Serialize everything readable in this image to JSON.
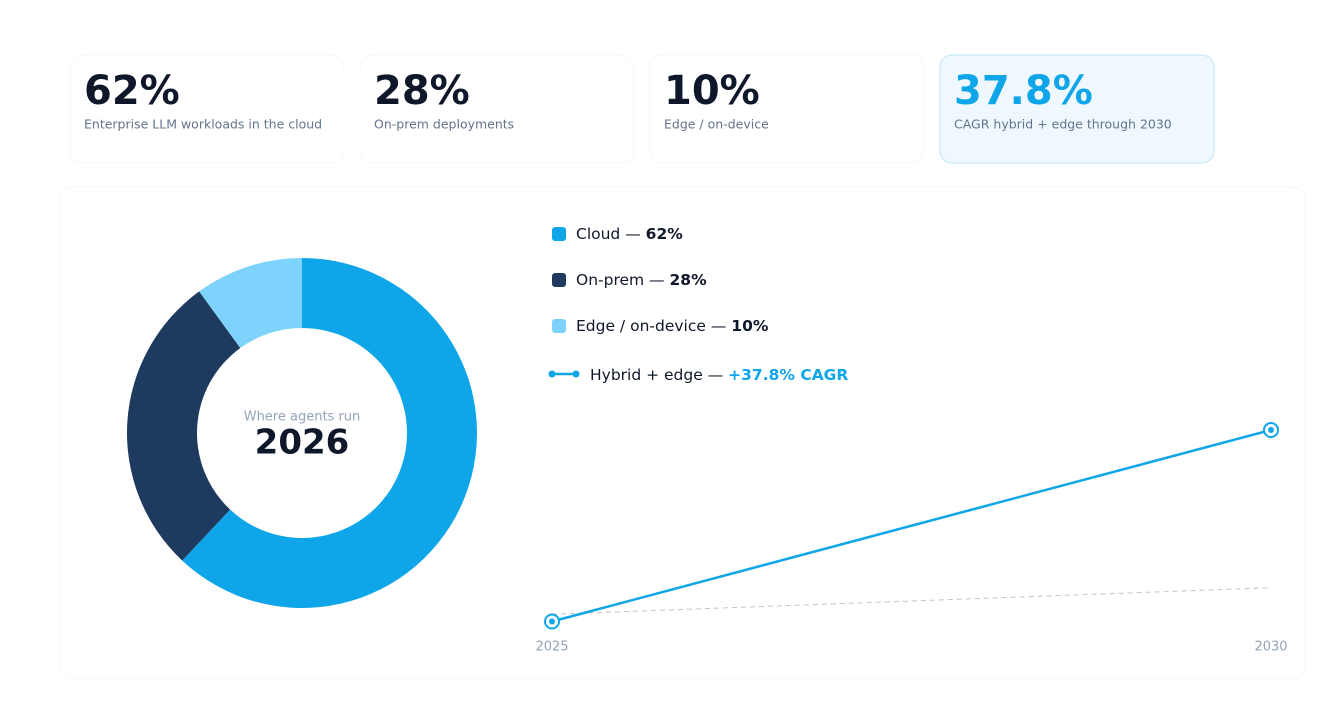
{
  "cards": [
    {
      "value": "62%",
      "label": "Enterprise LLM workloads in the cloud"
    },
    {
      "value": "28%",
      "label": "On-prem deployments"
    },
    {
      "value": "10%",
      "label": "Edge / on-device"
    },
    {
      "value": "37.8%",
      "label": "CAGR hybrid + edge through 2030",
      "accent": true
    }
  ],
  "legend_separator": "—",
  "chart_data": [
    {
      "type": "pie",
      "subtitle": "Where agents run",
      "title": "2026",
      "categories": [
        "Cloud",
        "On-prem",
        "Edge / on-device"
      ],
      "values": [
        62,
        28,
        10
      ],
      "value_labels": [
        "62%",
        "28%",
        "10%"
      ],
      "colors": [
        "#0ea5e9",
        "#1e3a5f",
        "#7dd3fc"
      ],
      "donut": true
    },
    {
      "type": "line",
      "x": [
        2025,
        2030
      ],
      "xlim": [
        2025,
        2030
      ],
      "xticks": [
        2025,
        2030
      ],
      "ylim": [
        1,
        5
      ],
      "series": [
        {
          "name": "Hybrid + edge",
          "legend_note": "+37.8% CAGR",
          "color": "#0ea5e9",
          "values": [
            1,
            4.97
          ],
          "markers": true
        },
        {
          "color": "#c4c4c4",
          "dashed": true,
          "values": [
            1.15,
            1.7
          ]
        }
      ]
    }
  ]
}
